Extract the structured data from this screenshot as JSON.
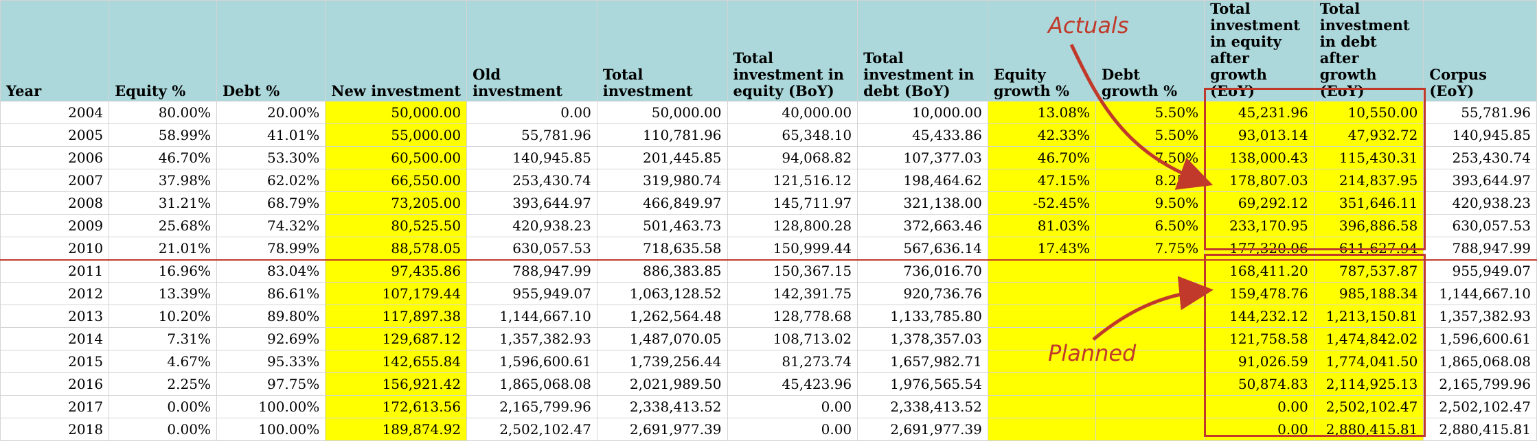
{
  "headers": [
    "Year",
    "Equity %",
    "Debt %",
    "New investment",
    "Old investment",
    "Total investment",
    "Total investment in equity (BoY)",
    "Total investment in debt (BoY)",
    "Equity growth %",
    "Debt growth %",
    "Total investment in equity after growth (EoY)",
    "Total investment in debt after growth (EoY)",
    "Corpus (EoY)"
  ],
  "rows": [
    [
      "2004",
      "80.00%",
      "20.00%",
      "50,000.00",
      "0.00",
      "50,000.00",
      "40,000.00",
      "10,000.00",
      "13.08%",
      "5.50%",
      "45,231.96",
      "10,550.00",
      "55,781.96"
    ],
    [
      "2005",
      "58.99%",
      "41.01%",
      "55,000.00",
      "55,781.96",
      "110,781.96",
      "65,348.10",
      "45,433.86",
      "42.33%",
      "5.50%",
      "93,013.14",
      "47,932.72",
      "140,945.85"
    ],
    [
      "2006",
      "46.70%",
      "53.30%",
      "60,500.00",
      "140,945.85",
      "201,445.85",
      "94,068.82",
      "107,377.03",
      "46.70%",
      "7.50%",
      "138,000.43",
      "115,430.31",
      "253,430.74"
    ],
    [
      "2007",
      "37.98%",
      "62.02%",
      "66,550.00",
      "253,430.74",
      "319,980.74",
      "121,516.12",
      "198,464.62",
      "47.15%",
      "8.25%",
      "178,807.03",
      "214,837.95",
      "393,644.97"
    ],
    [
      "2008",
      "31.21%",
      "68.79%",
      "73,205.00",
      "393,644.97",
      "466,849.97",
      "145,711.97",
      "321,138.00",
      "-52.45%",
      "9.50%",
      "69,292.12",
      "351,646.11",
      "420,938.23"
    ],
    [
      "2009",
      "25.68%",
      "74.32%",
      "80,525.50",
      "420,938.23",
      "501,463.73",
      "128,800.28",
      "372,663.46",
      "81.03%",
      "6.50%",
      "233,170.95",
      "396,886.58",
      "630,057.53"
    ],
    [
      "2010",
      "21.01%",
      "78.99%",
      "88,578.05",
      "630,057.53",
      "718,635.58",
      "150,999.44",
      "567,636.14",
      "17.43%",
      "7.75%",
      "177,320.06",
      "611,627.94",
      "788,947.99"
    ],
    [
      "2011",
      "16.96%",
      "83.04%",
      "97,435.86",
      "788,947.99",
      "886,383.85",
      "150,367.15",
      "736,016.70",
      "",
      "",
      "168,411.20",
      "787,537.87",
      "955,949.07"
    ],
    [
      "2012",
      "13.39%",
      "86.61%",
      "107,179.44",
      "955,949.07",
      "1,063,128.52",
      "142,391.75",
      "920,736.76",
      "",
      "",
      "159,478.76",
      "985,188.34",
      "1,144,667.10"
    ],
    [
      "2013",
      "10.20%",
      "89.80%",
      "117,897.38",
      "1,144,667.10",
      "1,262,564.48",
      "128,778.68",
      "1,133,785.80",
      "",
      "",
      "144,232.12",
      "1,213,150.81",
      "1,357,382.93"
    ],
    [
      "2014",
      "7.31%",
      "92.69%",
      "129,687.12",
      "1,357,382.93",
      "1,487,070.05",
      "108,713.02",
      "1,378,357.03",
      "",
      "",
      "121,758.58",
      "1,474,842.02",
      "1,596,600.61"
    ],
    [
      "2015",
      "4.67%",
      "95.33%",
      "142,655.84",
      "1,596,600.61",
      "1,739,256.44",
      "81,273.74",
      "1,657,982.71",
      "",
      "",
      "91,026.59",
      "1,774,041.50",
      "1,865,068.08"
    ],
    [
      "2016",
      "2.25%",
      "97.75%",
      "156,921.42",
      "1,865,068.08",
      "2,021,989.50",
      "45,423.96",
      "1,976,565.54",
      "",
      "",
      "50,874.83",
      "2,114,925.13",
      "2,165,799.96"
    ],
    [
      "2017",
      "0.00%",
      "100.00%",
      "172,613.56",
      "2,165,799.96",
      "2,338,413.52",
      "0.00",
      "2,338,413.52",
      "",
      "",
      "0.00",
      "2,502,102.47",
      "2,502,102.47"
    ],
    [
      "2018",
      "0.00%",
      "100.00%",
      "189,874.92",
      "2,502,102.47",
      "2,691,977.39",
      "0.00",
      "2,691,977.39",
      "",
      "",
      "0.00",
      "2,880,415.81",
      "2,880,415.81"
    ]
  ],
  "annotations": {
    "actuals": "Actuals",
    "planned": "Planned"
  },
  "colors": {
    "header_bg": "#acd8db",
    "highlight": "#ffff00",
    "annotation": "#c0392b"
  }
}
